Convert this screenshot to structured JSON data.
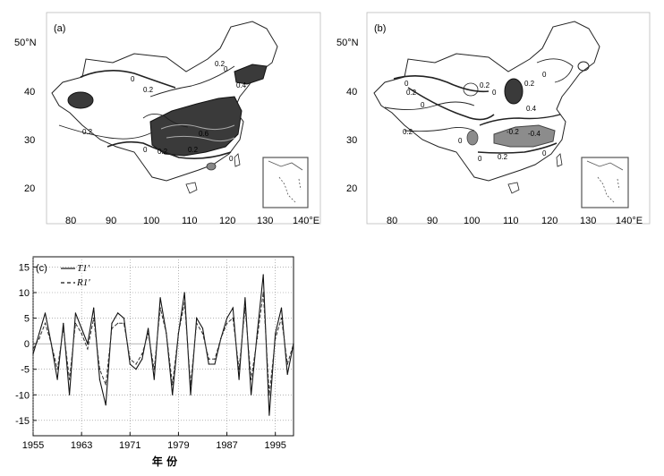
{
  "maps": [
    {
      "panel_label": "(a)",
      "lat_ticks": [
        "50°N",
        "40",
        "30",
        "20"
      ],
      "lon_ticks": [
        "80",
        "90",
        "100",
        "110",
        "120",
        "130",
        "140°E"
      ],
      "contour_labels": [
        "0",
        "0.2",
        "0.2",
        "0",
        "0.2",
        "0",
        "0.4",
        "0.2",
        "0.6",
        "0.2",
        "0"
      ]
    },
    {
      "panel_label": "(b)",
      "lat_ticks": [
        "50°N",
        "40",
        "30",
        "20"
      ],
      "lon_ticks": [
        "80",
        "90",
        "100",
        "110",
        "120",
        "130",
        "140°E"
      ],
      "contour_labels": [
        "0",
        "0.2",
        "0",
        "0.2",
        "0",
        "0.2",
        "0",
        "0.4",
        "0.2",
        "0",
        "-0.2",
        "-0.4",
        "0",
        "0.2",
        "0"
      ]
    }
  ],
  "chart_data": {
    "type": "line",
    "panel_label": "(c)",
    "xlabel": "年 份",
    "ylabel": "",
    "x_ticks": [
      "1955",
      "1963",
      "1971",
      "1979",
      "1987",
      "1995"
    ],
    "y_ticks": [
      "15",
      "10",
      "5",
      "0",
      "-5",
      "-10",
      "-15"
    ],
    "xlim": [
      1955,
      1998
    ],
    "ylim": [
      -18,
      17
    ],
    "grid": true,
    "legend_position": "top-left",
    "x": [
      1955,
      1956,
      1957,
      1958,
      1959,
      1960,
      1961,
      1962,
      1963,
      1964,
      1965,
      1966,
      1967,
      1968,
      1969,
      1970,
      1971,
      1972,
      1973,
      1974,
      1975,
      1976,
      1977,
      1978,
      1979,
      1980,
      1981,
      1982,
      1983,
      1984,
      1985,
      1986,
      1987,
      1988,
      1989,
      1990,
      1991,
      1992,
      1993,
      1994,
      1995,
      1996,
      1997,
      1998
    ],
    "series": [
      {
        "name": "T1'",
        "style": "solid",
        "values": [
          -2,
          2,
          6,
          0,
          -7,
          4,
          -10,
          6,
          3,
          0,
          7,
          -7,
          -12,
          4,
          6,
          5,
          -4,
          -5,
          -3,
          3,
          -7,
          9,
          2,
          -10,
          2,
          10,
          -10,
          5,
          3,
          -4,
          -4,
          1,
          5,
          7,
          -7,
          9,
          -10,
          2,
          13.5,
          -14,
          2,
          7,
          -6,
          0
        ]
      },
      {
        "name": "R1'",
        "style": "dashed",
        "values": [
          -1,
          1,
          4,
          0,
          -5,
          3,
          -7,
          4,
          2,
          -1,
          5,
          -5,
          -8,
          3,
          4,
          4,
          -3,
          -4,
          -2,
          2,
          -5,
          7,
          2,
          -8,
          2,
          8,
          -8,
          4,
          2,
          -3,
          -3,
          1,
          4,
          5,
          -5,
          7,
          -7,
          1,
          10,
          -10,
          1,
          5,
          -4,
          0
        ]
      }
    ]
  }
}
